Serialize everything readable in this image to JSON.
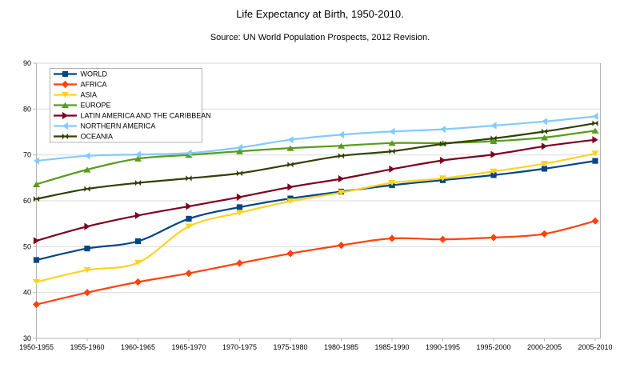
{
  "chart_data": {
    "type": "line",
    "title": "Life Expectancy at Birth, 1950-2010.",
    "subtitle": "Source: UN World Population Prospects, 2012 Revision.",
    "xlabel": "",
    "ylabel": "",
    "ylim": [
      30,
      90
    ],
    "y_ticks": [
      30,
      40,
      50,
      60,
      70,
      80,
      90
    ],
    "grid": "horizontal",
    "legend_position": "top-left-inside",
    "background_color": "#ffffff",
    "gridline_color": "#d9d9d9",
    "axis_color": "#b3b3b3",
    "legend_border_color": "#b3b3b3",
    "text_color": "#000000",
    "categories": [
      "1950-1955",
      "1955-1960",
      "1960-1965",
      "1965-1970",
      "1970-1975",
      "1975-1980",
      "1980-1985",
      "1985-1990",
      "1990-1995",
      "1995-2000",
      "2000-2005",
      "2005-2010"
    ],
    "series": [
      {
        "name": "WORLD",
        "color": "#004586",
        "marker": "square",
        "values": [
          47.1,
          49.6,
          51.2,
          56.1,
          58.6,
          60.5,
          62.0,
          63.4,
          64.5,
          65.6,
          67.0,
          68.7
        ]
      },
      {
        "name": "AFRICA",
        "color": "#ff420e",
        "marker": "diamond",
        "values": [
          37.4,
          40.0,
          42.3,
          44.2,
          46.4,
          48.5,
          50.3,
          51.8,
          51.6,
          52.0,
          52.8,
          55.6
        ]
      },
      {
        "name": "ASIA",
        "color": "#ffd320",
        "marker": "arrow-down",
        "values": [
          42.3,
          44.9,
          46.5,
          54.4,
          57.4,
          59.9,
          61.8,
          63.9,
          64.9,
          66.4,
          68.1,
          70.3
        ]
      },
      {
        "name": "EUROPE",
        "color": "#579d1c",
        "marker": "arrow-up",
        "values": [
          63.6,
          66.8,
          69.2,
          70.0,
          70.8,
          71.5,
          72.0,
          72.6,
          72.6,
          73.0,
          73.8,
          75.3
        ]
      },
      {
        "name": "LATIN AMERICA AND THE CARIBBEAN",
        "color": "#7e0021",
        "marker": "arrow-right",
        "values": [
          51.3,
          54.4,
          56.8,
          58.8,
          60.8,
          63.0,
          64.8,
          66.9,
          68.8,
          70.1,
          71.9,
          73.3
        ]
      },
      {
        "name": "NORTHERN AMERICA",
        "color": "#83caff",
        "marker": "arrow-left",
        "values": [
          68.7,
          69.8,
          70.1,
          70.4,
          71.6,
          73.3,
          74.4,
          75.1,
          75.6,
          76.4,
          77.3,
          78.4
        ]
      },
      {
        "name": "OCEANIA",
        "color": "#314004",
        "marker": "bowtie",
        "values": [
          60.4,
          62.6,
          63.9,
          64.9,
          66.0,
          67.9,
          69.8,
          70.8,
          72.4,
          73.6,
          75.1,
          76.9
        ]
      }
    ]
  }
}
